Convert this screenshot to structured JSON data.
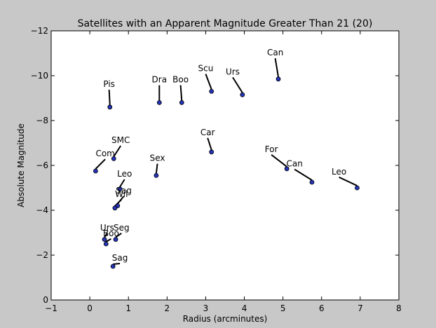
{
  "chart_data": {
    "type": "scatter",
    "title": "Satellites with an Apparent Magnitude Greater Than 21 (20)",
    "xlabel": "Radius (arcminutes)",
    "ylabel": "Absolute Magnitude",
    "xlim": [
      -1,
      8
    ],
    "ylim": [
      0,
      -12
    ],
    "y_inverted": true,
    "xticks": [
      -1,
      0,
      1,
      2,
      3,
      4,
      5,
      6,
      7,
      8
    ],
    "yticks": [
      0,
      -2,
      -4,
      -6,
      -8,
      -10,
      -12
    ],
    "xtick_labels": [
      "−1",
      "0",
      "1",
      "2",
      "3",
      "4",
      "5",
      "6",
      "7",
      "8"
    ],
    "ytick_labels": [
      "0",
      "−2",
      "−4",
      "−6",
      "−8",
      "−10",
      "−12"
    ],
    "grid": false,
    "marker_color": "#2433b5",
    "points": [
      {
        "x": 0.52,
        "y": -8.6,
        "label": "Pis",
        "label_x": 0.5,
        "label_y": -9.5
      },
      {
        "x": 1.8,
        "y": -8.8,
        "label": "Dra",
        "label_x": 1.8,
        "label_y": -9.7
      },
      {
        "x": 2.38,
        "y": -8.8,
        "label": "Boo",
        "label_x": 2.35,
        "label_y": -9.7
      },
      {
        "x": 3.15,
        "y": -9.3,
        "label": "Scu",
        "label_x": 3.0,
        "label_y": -10.2
      },
      {
        "x": 3.95,
        "y": -9.15,
        "label": "Urs",
        "label_x": 3.7,
        "label_y": -10.05
      },
      {
        "x": 4.88,
        "y": -9.85,
        "label": "Can",
        "label_x": 4.8,
        "label_y": -10.9
      },
      {
        "x": 0.15,
        "y": -5.75,
        "label": "Com",
        "label_x": 0.4,
        "label_y": -6.4
      },
      {
        "x": 0.62,
        "y": -6.3,
        "label": "SMC",
        "label_x": 0.8,
        "label_y": -7.0
      },
      {
        "x": 1.72,
        "y": -5.55,
        "label": "Sex",
        "label_x": 1.75,
        "label_y": -6.2
      },
      {
        "x": 3.15,
        "y": -6.6,
        "label": "Car",
        "label_x": 3.05,
        "label_y": -7.35
      },
      {
        "x": 5.1,
        "y": -5.85,
        "label": "For",
        "label_x": 4.7,
        "label_y": -6.6
      },
      {
        "x": 5.75,
        "y": -5.25,
        "label": "Can",
        "label_x": 5.3,
        "label_y": -5.95
      },
      {
        "x": 6.92,
        "y": -5.0,
        "label": "Leo",
        "label_x": 6.45,
        "label_y": -5.6
      },
      {
        "x": 0.78,
        "y": -4.95,
        "label": "Leo",
        "label_x": 0.9,
        "label_y": -5.5
      },
      {
        "x": 0.72,
        "y": -4.2,
        "label": "Sag",
        "label_x": 0.88,
        "label_y": -4.75
      },
      {
        "x": 0.65,
        "y": -4.1,
        "label": "Wil",
        "label_x": 0.82,
        "label_y": -4.6
      },
      {
        "x": 0.38,
        "y": -2.7,
        "label": "Urs",
        "label_x": 0.45,
        "label_y": -3.1
      },
      {
        "x": 0.67,
        "y": -2.7,
        "label": "Seg",
        "label_x": 0.82,
        "label_y": -3.1
      },
      {
        "x": 0.42,
        "y": -2.5,
        "label": "Boo",
        "label_x": 0.55,
        "label_y": -2.85
      },
      {
        "x": 0.6,
        "y": -1.5,
        "label": "Sag",
        "label_x": 0.78,
        "label_y": -1.75
      }
    ]
  }
}
